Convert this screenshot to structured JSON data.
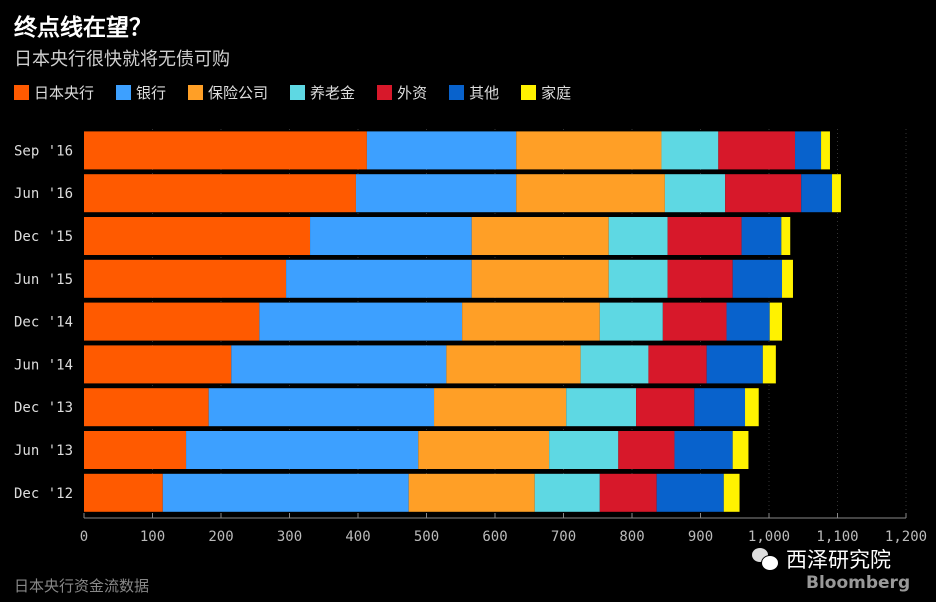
{
  "chart_data": {
    "type": "bar",
    "orientation": "horizontal",
    "stacked": true,
    "title": "终点线在望？",
    "subtitle": "日本央行很快就将无债可购",
    "categories": [
      "Sep '16",
      "Jun '16",
      "Dec '15",
      "Jun '15",
      "Dec '14",
      "Jun '14",
      "Dec '13",
      "Jun '13",
      "Dec '12"
    ],
    "series": [
      {
        "name": "日本央行",
        "color": "#FF5A00",
        "values": [
          413,
          397,
          330,
          295,
          256,
          215,
          182,
          149,
          115
        ]
      },
      {
        "name": "银行",
        "color": "#3DA0FF",
        "values": [
          218,
          234,
          236,
          271,
          296,
          314,
          329,
          339,
          359
        ]
      },
      {
        "name": "保险公司",
        "color": "#FF9F26",
        "values": [
          212,
          217,
          200,
          200,
          201,
          196,
          193,
          191,
          184
        ]
      },
      {
        "name": "养老金",
        "color": "#5ED8E3",
        "values": [
          83,
          88,
          86,
          86,
          92,
          99,
          102,
          101,
          95
        ]
      },
      {
        "name": "外资",
        "color": "#D7182A",
        "values": [
          112,
          111,
          108,
          95,
          93,
          85,
          85,
          82,
          83
        ]
      },
      {
        "name": "其他",
        "color": "#0862CC",
        "values": [
          38,
          45,
          58,
          72,
          63,
          82,
          74,
          85,
          98
        ]
      },
      {
        "name": "家庭",
        "color": "#FFF200",
        "values": [
          13,
          13,
          13,
          16,
          18,
          19,
          20,
          23,
          23
        ]
      }
    ],
    "xlim": [
      0,
      1200
    ],
    "xticks": [
      "0",
      "100",
      "200",
      "300",
      "400",
      "500",
      "600",
      "700",
      "800",
      "900",
      "1,000",
      "1,100",
      "1,200"
    ],
    "legend": "top",
    "grid": true
  },
  "source": "日本央行资金流数据",
  "watermark": "西泽研究院",
  "brand": "Bloomberg"
}
